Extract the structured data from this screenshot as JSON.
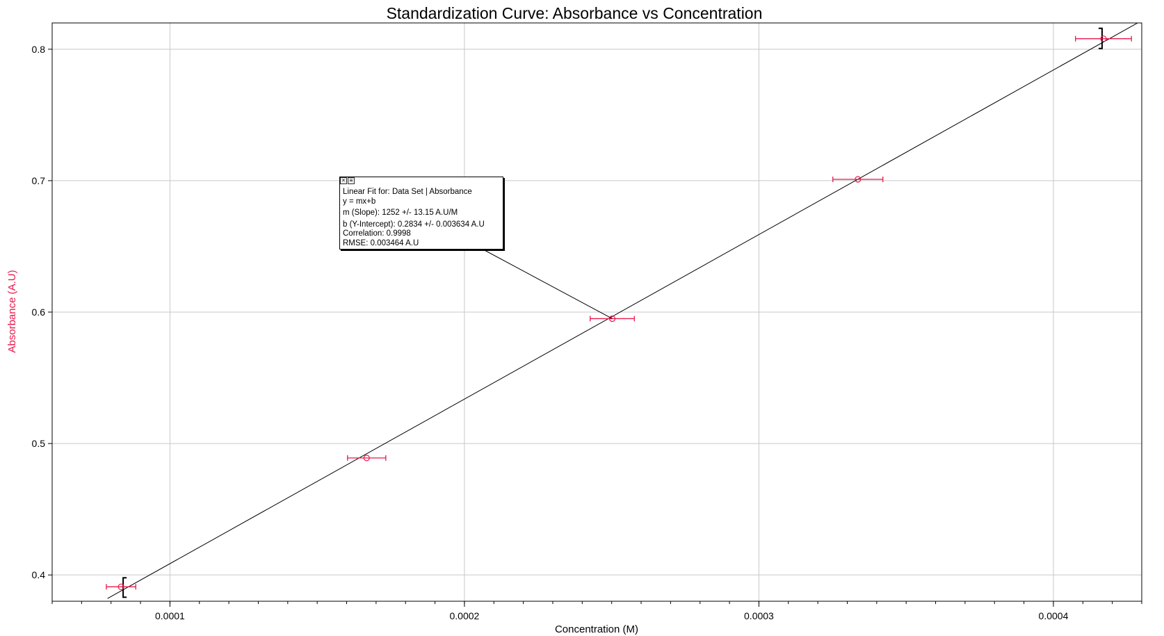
{
  "chart_data": {
    "type": "scatter",
    "title": "Standardization Curve: Absorbance vs Concentration",
    "xlabel": "Concentration (M)",
    "ylabel": "Absorbance (A.U)",
    "xlim": [
      6e-05,
      0.00043
    ],
    "ylim": [
      0.38,
      0.82
    ],
    "x_ticks": [
      0.0001,
      0.0002,
      0.0003,
      0.0004
    ],
    "x_tick_labels": [
      "0.0001",
      "0.0002",
      "0.0003",
      "0.0004"
    ],
    "y_ticks": [
      0.4,
      0.5,
      0.6,
      0.7,
      0.8
    ],
    "y_tick_labels": [
      "0.4",
      "0.5",
      "0.6",
      "0.7",
      "0.8"
    ],
    "grid": true,
    "series": [
      {
        "points": [
          {
            "x": 8.34e-05,
            "y": 0.391,
            "xerr": 5e-06
          },
          {
            "x": 0.0001668,
            "y": 0.489,
            "xerr": 6.5e-06
          },
          {
            "x": 0.0002502,
            "y": 0.595,
            "xerr": 7.5e-06
          },
          {
            "x": 0.0003336,
            "y": 0.701,
            "xerr": 8.5e-06
          },
          {
            "x": 0.000417,
            "y": 0.808,
            "xerr": 9.5e-06
          }
        ],
        "color": "#e8174a"
      }
    ],
    "fit": {
      "slope": 1252,
      "intercept": 0.2834,
      "color": "#000000",
      "label_lines": [
        "Linear Fit for: Data Set | Absorbance",
        "y = mx+b",
        "m (Slope): 1252 +/- 13.15 A.U/M",
        "b (Y-Intercept): 0.2834 +/- 0.003634 A.U",
        "Correlation: 0.9998",
        "RMSE: 0.003464 A.U"
      ],
      "anchor_point_index": 2
    },
    "y_axis_label_color": "#e8174a"
  }
}
